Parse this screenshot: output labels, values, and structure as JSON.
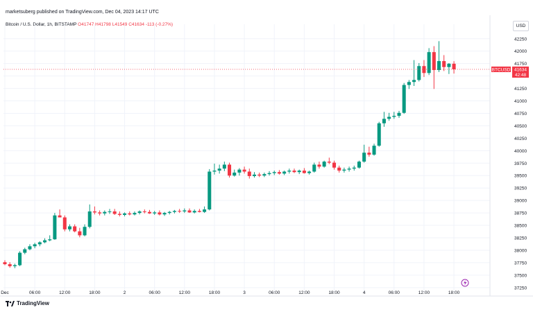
{
  "header": {
    "published": "marketsuberg published on TradingView.com, Dec 04, 2023 14:17 UTC",
    "symbol_title": "Bitcoin / U.S. Dollar, 1h, BITSTAMP",
    "ohlc": {
      "open": "O41747",
      "high": "H41798",
      "low": "L41549",
      "close": "C41634",
      "change": "-113 (-0.27%)"
    }
  },
  "currency_button": "USD",
  "footer": {
    "logo": "TradingView",
    "logo_icon": "tradingview-logo-icon"
  },
  "colors": {
    "up": "#089981",
    "down": "#f23645",
    "grid": "#f0f3fa",
    "price_line": "#f23645"
  },
  "chart_data": {
    "type": "candlestick",
    "symbol": "BTCUSD",
    "last_price": 41634,
    "countdown": "42:48",
    "x_ticks": [
      "Dec",
      "06:00",
      "12:00",
      "18:00",
      "2",
      "06:00",
      "12:00",
      "18:00",
      "3",
      "06:00",
      "12:00",
      "18:00",
      "4",
      "06:00",
      "12:00",
      "18:00"
    ],
    "x_tick_hours": [
      0,
      6,
      12,
      18,
      24,
      30,
      36,
      42,
      48,
      54,
      60,
      66,
      72,
      78,
      84,
      90
    ],
    "y_ticks": [
      37250,
      37500,
      37750,
      38000,
      38250,
      38500,
      38750,
      39000,
      39250,
      39500,
      39750,
      40000,
      40250,
      40500,
      40750,
      41000,
      41250,
      41500,
      41750,
      42000,
      42250
    ],
    "ylim": [
      37150,
      42400
    ],
    "xlim_hours": [
      0,
      97.5
    ],
    "candles": [
      {
        "o": 37760,
        "h": 37800,
        "l": 37700,
        "c": 37720
      },
      {
        "o": 37720,
        "h": 37760,
        "l": 37650,
        "c": 37680
      },
      {
        "o": 37680,
        "h": 37730,
        "l": 37640,
        "c": 37700
      },
      {
        "o": 37700,
        "h": 37980,
        "l": 37680,
        "c": 37950
      },
      {
        "o": 37950,
        "h": 38050,
        "l": 37920,
        "c": 38020
      },
      {
        "o": 38020,
        "h": 38120,
        "l": 38000,
        "c": 38080
      },
      {
        "o": 38080,
        "h": 38150,
        "l": 38040,
        "c": 38120
      },
      {
        "o": 38120,
        "h": 38180,
        "l": 38080,
        "c": 38160
      },
      {
        "o": 38160,
        "h": 38240,
        "l": 38140,
        "c": 38200
      },
      {
        "o": 38200,
        "h": 38300,
        "l": 38180,
        "c": 38220
      },
      {
        "o": 38220,
        "h": 38750,
        "l": 38210,
        "c": 38700
      },
      {
        "o": 38700,
        "h": 38820,
        "l": 38680,
        "c": 38660
      },
      {
        "o": 38660,
        "h": 38700,
        "l": 38380,
        "c": 38420
      },
      {
        "o": 38420,
        "h": 38520,
        "l": 38380,
        "c": 38480
      },
      {
        "o": 38480,
        "h": 38520,
        "l": 38360,
        "c": 38380
      },
      {
        "o": 38380,
        "h": 38450,
        "l": 38260,
        "c": 38300
      },
      {
        "o": 38300,
        "h": 38520,
        "l": 38280,
        "c": 38470
      },
      {
        "o": 38470,
        "h": 38920,
        "l": 38440,
        "c": 38780
      },
      {
        "o": 38780,
        "h": 38880,
        "l": 38720,
        "c": 38760
      },
      {
        "o": 38760,
        "h": 38800,
        "l": 38700,
        "c": 38740
      },
      {
        "o": 38740,
        "h": 38800,
        "l": 38700,
        "c": 38770
      },
      {
        "o": 38770,
        "h": 38830,
        "l": 38730,
        "c": 38780
      },
      {
        "o": 38780,
        "h": 38830,
        "l": 38710,
        "c": 38730
      },
      {
        "o": 38730,
        "h": 38780,
        "l": 38680,
        "c": 38710
      },
      {
        "o": 38710,
        "h": 38760,
        "l": 38680,
        "c": 38740
      },
      {
        "o": 38740,
        "h": 38780,
        "l": 38700,
        "c": 38720
      },
      {
        "o": 38720,
        "h": 38780,
        "l": 38700,
        "c": 38750
      },
      {
        "o": 38750,
        "h": 38800,
        "l": 38720,
        "c": 38780
      },
      {
        "o": 38780,
        "h": 38820,
        "l": 38740,
        "c": 38770
      },
      {
        "o": 38770,
        "h": 38810,
        "l": 38730,
        "c": 38740
      },
      {
        "o": 38740,
        "h": 38790,
        "l": 38710,
        "c": 38760
      },
      {
        "o": 38760,
        "h": 38800,
        "l": 38700,
        "c": 38720
      },
      {
        "o": 38720,
        "h": 38770,
        "l": 38690,
        "c": 38750
      },
      {
        "o": 38750,
        "h": 38790,
        "l": 38720,
        "c": 38770
      },
      {
        "o": 38770,
        "h": 38810,
        "l": 38740,
        "c": 38790
      },
      {
        "o": 38790,
        "h": 38830,
        "l": 38750,
        "c": 38780
      },
      {
        "o": 38780,
        "h": 38840,
        "l": 38750,
        "c": 38800
      },
      {
        "o": 38800,
        "h": 38840,
        "l": 38750,
        "c": 38760
      },
      {
        "o": 38760,
        "h": 38820,
        "l": 38740,
        "c": 38790
      },
      {
        "o": 38790,
        "h": 38830,
        "l": 38760,
        "c": 38770
      },
      {
        "o": 38770,
        "h": 38880,
        "l": 38750,
        "c": 38820
      },
      {
        "o": 38820,
        "h": 39630,
        "l": 38800,
        "c": 39580
      },
      {
        "o": 39580,
        "h": 39740,
        "l": 39520,
        "c": 39600
      },
      {
        "o": 39600,
        "h": 39720,
        "l": 39540,
        "c": 39640
      },
      {
        "o": 39640,
        "h": 39780,
        "l": 39590,
        "c": 39720
      },
      {
        "o": 39720,
        "h": 39760,
        "l": 39460,
        "c": 39500
      },
      {
        "o": 39500,
        "h": 39620,
        "l": 39480,
        "c": 39560
      },
      {
        "o": 39560,
        "h": 39650,
        "l": 39500,
        "c": 39620
      },
      {
        "o": 39620,
        "h": 39680,
        "l": 39540,
        "c": 39580
      },
      {
        "o": 39580,
        "h": 39640,
        "l": 39440,
        "c": 39490
      },
      {
        "o": 39490,
        "h": 39570,
        "l": 39460,
        "c": 39520
      },
      {
        "o": 39520,
        "h": 39560,
        "l": 39470,
        "c": 39500
      },
      {
        "o": 39500,
        "h": 39560,
        "l": 39470,
        "c": 39530
      },
      {
        "o": 39530,
        "h": 39590,
        "l": 39500,
        "c": 39550
      },
      {
        "o": 39550,
        "h": 39600,
        "l": 39510,
        "c": 39570
      },
      {
        "o": 39570,
        "h": 39610,
        "l": 39520,
        "c": 39540
      },
      {
        "o": 39540,
        "h": 39600,
        "l": 39510,
        "c": 39580
      },
      {
        "o": 39580,
        "h": 39640,
        "l": 39540,
        "c": 39600
      },
      {
        "o": 39600,
        "h": 39640,
        "l": 39550,
        "c": 39570
      },
      {
        "o": 39570,
        "h": 39620,
        "l": 39530,
        "c": 39600
      },
      {
        "o": 39600,
        "h": 39650,
        "l": 39540,
        "c": 39550
      },
      {
        "o": 39550,
        "h": 39600,
        "l": 39520,
        "c": 39580
      },
      {
        "o": 39580,
        "h": 39760,
        "l": 39560,
        "c": 39720
      },
      {
        "o": 39720,
        "h": 39780,
        "l": 39640,
        "c": 39680
      },
      {
        "o": 39680,
        "h": 39800,
        "l": 39660,
        "c": 39780
      },
      {
        "o": 39780,
        "h": 39860,
        "l": 39730,
        "c": 39760
      },
      {
        "o": 39760,
        "h": 39800,
        "l": 39620,
        "c": 39660
      },
      {
        "o": 39660,
        "h": 39700,
        "l": 39560,
        "c": 39600
      },
      {
        "o": 39600,
        "h": 39660,
        "l": 39560,
        "c": 39620
      },
      {
        "o": 39620,
        "h": 39680,
        "l": 39580,
        "c": 39640
      },
      {
        "o": 39640,
        "h": 39700,
        "l": 39600,
        "c": 39660
      },
      {
        "o": 39660,
        "h": 39800,
        "l": 39640,
        "c": 39780
      },
      {
        "o": 39780,
        "h": 40120,
        "l": 39760,
        "c": 39960
      },
      {
        "o": 39960,
        "h": 40080,
        "l": 39880,
        "c": 39920
      },
      {
        "o": 39920,
        "h": 40140,
        "l": 39900,
        "c": 40100
      },
      {
        "o": 40100,
        "h": 40580,
        "l": 40080,
        "c": 40550
      },
      {
        "o": 40550,
        "h": 40780,
        "l": 40480,
        "c": 40640
      },
      {
        "o": 40640,
        "h": 40760,
        "l": 40600,
        "c": 40680
      },
      {
        "o": 40680,
        "h": 40780,
        "l": 40640,
        "c": 40700
      },
      {
        "o": 40700,
        "h": 40800,
        "l": 40660,
        "c": 40760
      },
      {
        "o": 40760,
        "h": 41360,
        "l": 40740,
        "c": 41320
      },
      {
        "o": 41320,
        "h": 41420,
        "l": 41240,
        "c": 41380
      },
      {
        "o": 41380,
        "h": 41820,
        "l": 41300,
        "c": 41420
      },
      {
        "o": 41420,
        "h": 41760,
        "l": 41390,
        "c": 41700
      },
      {
        "o": 41700,
        "h": 41820,
        "l": 41480,
        "c": 41560
      },
      {
        "o": 41560,
        "h": 42060,
        "l": 41520,
        "c": 41980
      },
      {
        "o": 41980,
        "h": 42100,
        "l": 41240,
        "c": 41620
      },
      {
        "o": 41620,
        "h": 42200,
        "l": 41580,
        "c": 41800
      },
      {
        "o": 41800,
        "h": 41920,
        "l": 41600,
        "c": 41680
      },
      {
        "o": 41680,
        "h": 41760,
        "l": 41540,
        "c": 41747
      },
      {
        "o": 41747,
        "h": 41798,
        "l": 41549,
        "c": 41634
      }
    ]
  }
}
